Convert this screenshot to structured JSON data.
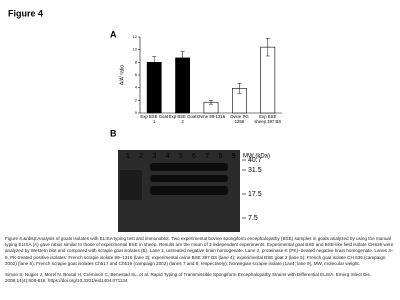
{
  "figure_title": "Figure 4",
  "panel_a": {
    "label": "A"
  },
  "chart_data": {
    "type": "bar",
    "y_label": "A/A' ratio",
    "categories": [
      "Exp BSE Goat 1",
      "Exp BSE Goat 2",
      "Ovine 99-1316",
      "Ovine PG 1259",
      "Exp BSE sheep 397 BS"
    ],
    "values": [
      8.0,
      8.7,
      1.7,
      3.9,
      10.4
    ],
    "errors": [
      0.9,
      1.0,
      0.3,
      0.8,
      1.4
    ],
    "colors": [
      "#000000",
      "#000000",
      "#ffffff",
      "#ffffff",
      "#ffffff"
    ],
    "ylim": [
      0,
      12
    ],
    "yticks": [
      0,
      2,
      4,
      6,
      8,
      10,
      12
    ]
  },
  "panel_b": {
    "label": "B",
    "lanes": [
      "1",
      "2",
      "3",
      "4",
      "5",
      "6",
      "7",
      "8",
      "9"
    ],
    "mw_title": "MW (kDa)",
    "mw_markers": [
      "40.7",
      "31.5",
      "17.5",
      "7.5"
    ]
  },
  "caption": "Figure 4.&nbsp;Analysis of goats isolates with ELISA typing test and immunoblot. Two experimental bovine spongiform encephalopathy (BSE) samples in goats analyzed by using the manual typing ELISA (A) gave ratios similar to those of experimental BSE in sheep. Results are the mean of 3 independent experiments. Experimental goat BSE and BSE-like field isolate CH636 were analyzed by Western blot and compared with scrapie goat isolates (B). Lane 1, untreated negative brain homogenate. Lane 2, proteinase K (PK)–treated negative brain homogenate. Lanes 3–9, PK-treated positive isolates: French scrapie isolate 99–1316 (lane 3); experimental ovine BSE 397 BS (lane 4); experimental BSE goat 2 (lane 5); French goat isolate CH 636 (campaign 2002) (lane 6); French scrapie goat isolates Ch517 and Ch519 (campaign 2002) (lanes 7 and 8, respectively); Norwegian scrapie isolate (Lav4; lane 9), MW, molecular weight.",
  "citation": "Simon S, Nugier J, Morel N, Boutal H, Créminon C, Benestad SL, et al. Rapid Typing of Transmissible Spongiform Encephalopathy Strains with Differential ELISA. Emerg Infect Dis. 2008;14(4):608-616. https://doi.org/10.3201/eid1404.071134"
}
